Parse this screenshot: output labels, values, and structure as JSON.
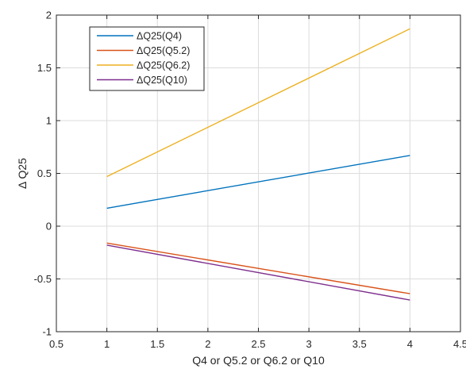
{
  "chart_data": {
    "type": "line",
    "xlabel": "Q4 or Q5.2 or Q6.2 or Q10",
    "ylabel": "Δ Q25",
    "xlim": [
      0.5,
      4.5
    ],
    "ylim": [
      -1,
      2
    ],
    "xticks": [
      0.5,
      1,
      1.5,
      2,
      2.5,
      3,
      3.5,
      4,
      4.5
    ],
    "xtick_labels": [
      "0.5",
      "1",
      "1.5",
      "2",
      "2.5",
      "3",
      "3.5",
      "4",
      "4.5"
    ],
    "yticks": [
      -1,
      -0.5,
      0,
      0.5,
      1,
      1.5,
      2
    ],
    "ytick_labels": [
      "-1",
      "-0.5",
      "0",
      "0.5",
      "1",
      "1.5",
      "2"
    ],
    "grid": true,
    "legend_position": "top-left",
    "series": [
      {
        "name": "ΔQ25(Q4)",
        "color": "#0072bd",
        "x": [
          1,
          4
        ],
        "y": [
          0.17,
          0.67
        ]
      },
      {
        "name": "ΔQ25(Q5.2)",
        "color": "#d95319",
        "x": [
          1,
          4
        ],
        "y": [
          -0.16,
          -0.64
        ]
      },
      {
        "name": "ΔQ25(Q6.2)",
        "color": "#edb120",
        "x": [
          1,
          4
        ],
        "y": [
          0.47,
          1.87
        ]
      },
      {
        "name": "ΔQ25(Q10)",
        "color": "#7e2f8e",
        "x": [
          1,
          4
        ],
        "y": [
          -0.18,
          -0.7
        ]
      }
    ]
  }
}
